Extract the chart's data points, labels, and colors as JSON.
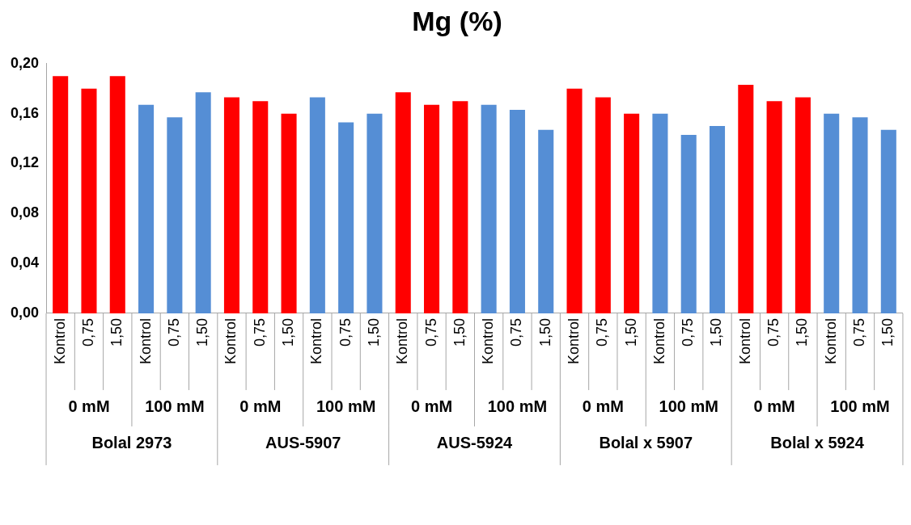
{
  "chart_data": {
    "type": "bar",
    "title": "Mg (%)",
    "categories": [
      "Kontrol",
      "0,75",
      "1,50",
      "Kontrol",
      "0,75",
      "1,50",
      "Kontrol",
      "0,75",
      "1,50",
      "Kontrol",
      "0,75",
      "1,50",
      "Kontrol",
      "0,75",
      "1,50",
      "Kontrol",
      "0,75",
      "1,50",
      "Kontrol",
      "0,75",
      "1,50",
      "Kontrol",
      "0,75",
      "1,50",
      "Kontrol",
      "0,75",
      "1,50",
      "Kontrol",
      "0,75",
      "1,50"
    ],
    "values": [
      0.19,
      0.18,
      0.19,
      0.167,
      0.157,
      0.177,
      0.173,
      0.17,
      0.16,
      0.173,
      0.153,
      0.16,
      0.177,
      0.167,
      0.17,
      0.167,
      0.163,
      0.147,
      0.18,
      0.173,
      0.16,
      0.16,
      0.143,
      0.15,
      0.183,
      0.17,
      0.173,
      0.16,
      0.157,
      0.147
    ],
    "colors": [
      "#ff0000",
      "#ff0000",
      "#ff0000",
      "#558ed5",
      "#558ed5",
      "#558ed5",
      "#ff0000",
      "#ff0000",
      "#ff0000",
      "#558ed5",
      "#558ed5",
      "#558ed5",
      "#ff0000",
      "#ff0000",
      "#ff0000",
      "#558ed5",
      "#558ed5",
      "#558ed5",
      "#ff0000",
      "#ff0000",
      "#ff0000",
      "#558ed5",
      "#558ed5",
      "#558ed5",
      "#ff0000",
      "#ff0000",
      "#ff0000",
      "#558ed5",
      "#558ed5",
      "#558ed5"
    ],
    "ylim": [
      0,
      0.2
    ],
    "yticks": [
      {
        "value": 0,
        "label": "0,00"
      },
      {
        "value": 0.04,
        "label": "0,04"
      },
      {
        "value": 0.08,
        "label": "0,08"
      },
      {
        "value": 0.12,
        "label": "0,12"
      },
      {
        "value": 0.16,
        "label": "0,16"
      },
      {
        "value": 0.2,
        "label": "0,20"
      }
    ],
    "annotations": [
      "0 mM",
      "100 mM",
      "0 mM",
      "100 mM",
      "0 mM",
      "100 mM",
      "0 mM",
      "100 mM",
      "0 mM",
      "100 mM",
      "Bolal 2973",
      "AUS-5907",
      "AUS-5924",
      "Bolal x 5907",
      "Bolal x 5924"
    ],
    "grid": false,
    "legend": false
  }
}
